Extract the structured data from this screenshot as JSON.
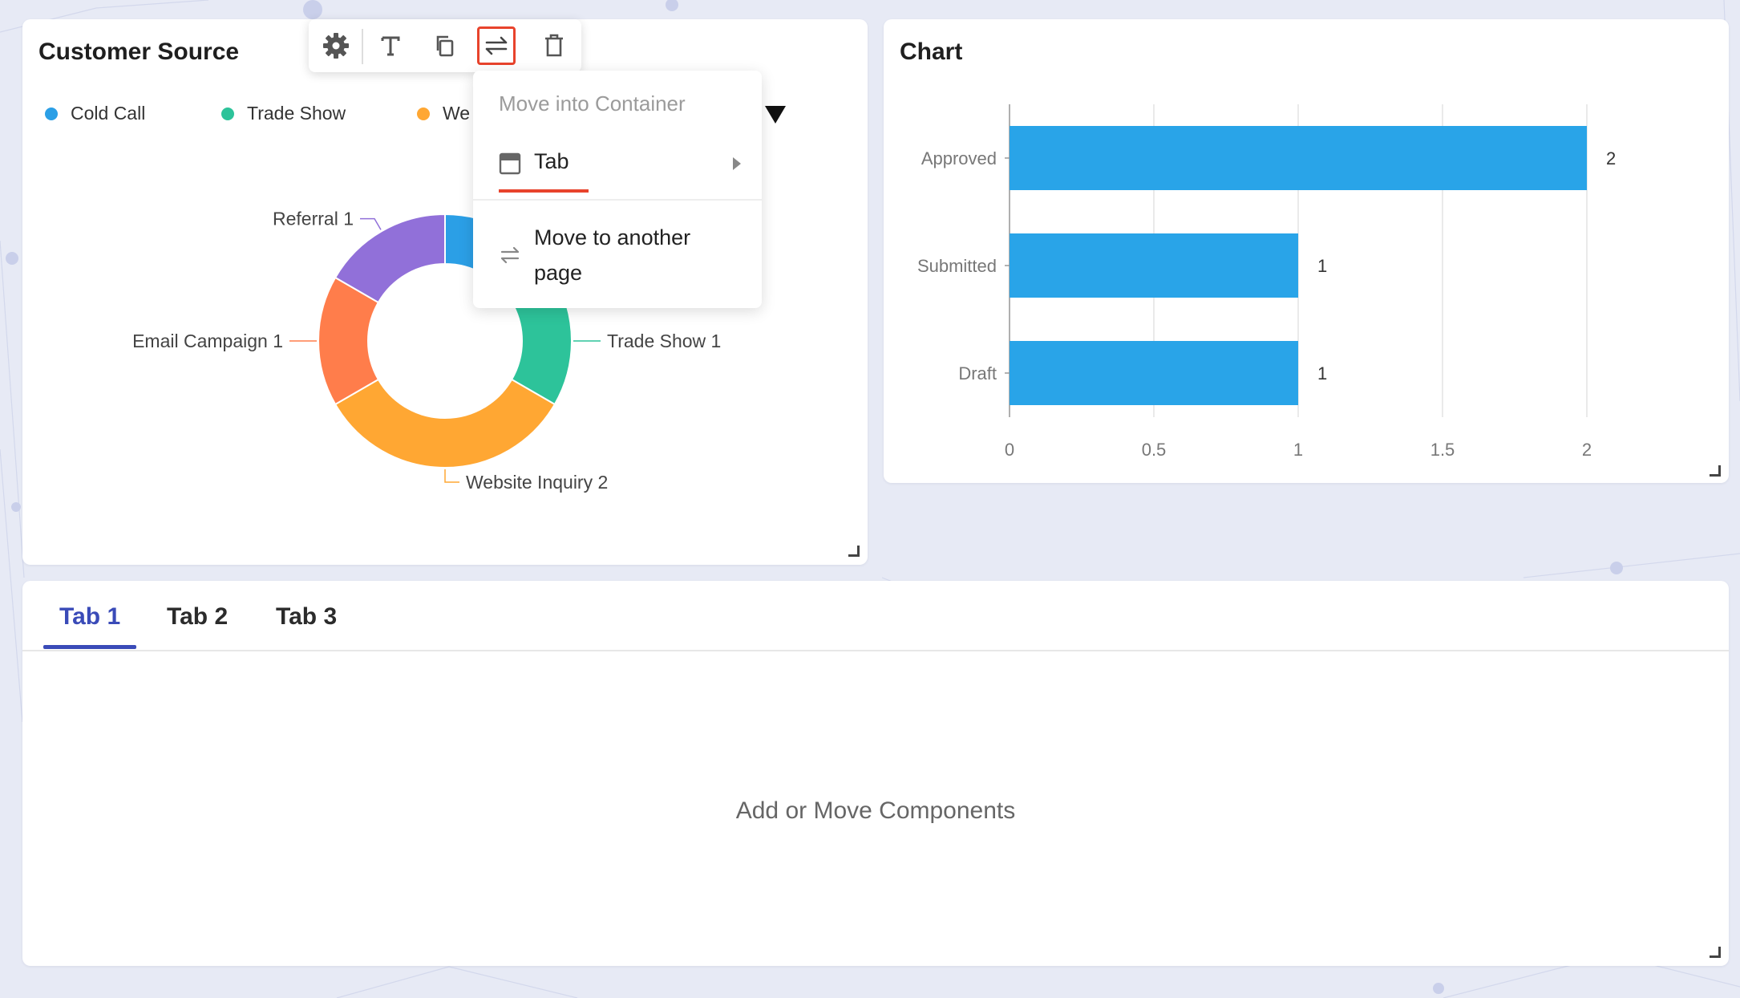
{
  "toolbar": {
    "buttons": [
      "settings-icon",
      "text-icon",
      "copy-icon",
      "move-icon",
      "delete-icon"
    ],
    "active": "move-icon"
  },
  "move_menu": {
    "header": "Move into Container",
    "tab_option": "Tab",
    "move_page_option": "Move to another page"
  },
  "customer_source": {
    "title": "Customer Source",
    "legend": [
      {
        "label": "Cold Call",
        "color": "#2b9fe6"
      },
      {
        "label": "Trade Show",
        "color": "#2dc39a"
      },
      {
        "label": "We",
        "color": "#ffa733"
      }
    ],
    "chart_data": {
      "type": "pie",
      "donut": true,
      "title": "Customer Source",
      "slices": [
        {
          "label": "Cold Call",
          "value": 1,
          "color": "#2b9fe6",
          "label_visible": false
        },
        {
          "label": "Trade Show",
          "value": 1,
          "color": "#2dc39a",
          "label_visible": true
        },
        {
          "label": "Website Inquiry",
          "value": 2,
          "color": "#ffa733",
          "label_visible": true
        },
        {
          "label": "Email Campaign",
          "value": 1,
          "color": "#ff7d4b",
          "label_visible": true
        },
        {
          "label": "Referral",
          "value": 1,
          "color": "#9170d9",
          "label_visible": true
        }
      ]
    }
  },
  "bar_card": {
    "title": "Chart",
    "chart_data": {
      "type": "bar",
      "orientation": "horizontal",
      "categories": [
        "Approved",
        "Submitted",
        "Draft"
      ],
      "values": [
        2,
        1,
        1
      ],
      "xlim": [
        0,
        2
      ],
      "xticks": [
        "0",
        "0.5",
        "1",
        "1.5",
        "2"
      ],
      "grid": true,
      "bar_color": "#29a4e8",
      "xlabel": "",
      "ylabel": ""
    }
  },
  "tabs": {
    "items": [
      "Tab 1",
      "Tab 2",
      "Tab 3"
    ],
    "active": "Tab 1",
    "empty_message": "Add or Move Components"
  }
}
